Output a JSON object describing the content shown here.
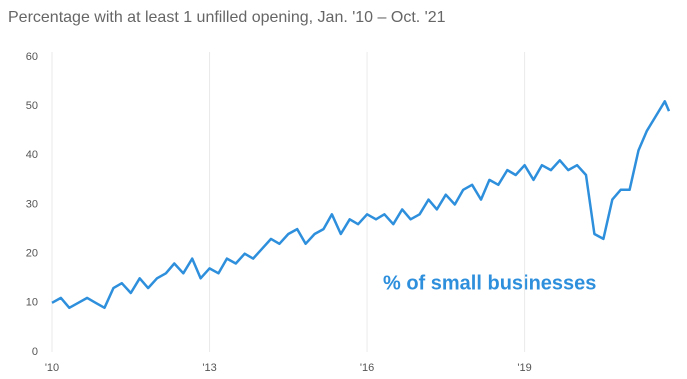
{
  "chart_data": {
    "type": "line",
    "title": "Percentage with at least 1 unfilled opening, Jan. '10 – Oct. '21",
    "x": [
      2010,
      2010.17,
      2010.33,
      2010.5,
      2010.67,
      2010.83,
      2011,
      2011.17,
      2011.33,
      2011.5,
      2011.67,
      2011.83,
      2012,
      2012.17,
      2012.33,
      2012.5,
      2012.67,
      2012.83,
      2013,
      2013.17,
      2013.33,
      2013.5,
      2013.67,
      2013.83,
      2014,
      2014.17,
      2014.33,
      2014.5,
      2014.67,
      2014.83,
      2015,
      2015.17,
      2015.33,
      2015.5,
      2015.67,
      2015.83,
      2016,
      2016.17,
      2016.33,
      2016.5,
      2016.67,
      2016.83,
      2017,
      2017.17,
      2017.33,
      2017.5,
      2017.67,
      2017.83,
      2018,
      2018.17,
      2018.33,
      2018.5,
      2018.67,
      2018.83,
      2019,
      2019.17,
      2019.33,
      2019.5,
      2019.67,
      2019.83,
      2020,
      2020.17,
      2020.33,
      2020.5,
      2020.67,
      2020.83,
      2021,
      2021.17,
      2021.33,
      2021.5,
      2021.67,
      2021.75
    ],
    "series": [
      {
        "name": "% of small businesses",
        "color": "#2e8fdc",
        "values": [
          10,
          11,
          9,
          10,
          11,
          10,
          9,
          13,
          14,
          12,
          15,
          13,
          15,
          16,
          18,
          16,
          19,
          15,
          17,
          16,
          19,
          18,
          20,
          19,
          21,
          23,
          22,
          24,
          25,
          22,
          24,
          25,
          28,
          24,
          27,
          26,
          28,
          27,
          28,
          26,
          29,
          27,
          28,
          31,
          29,
          32,
          30,
          33,
          34,
          31,
          35,
          34,
          37,
          36,
          38,
          35,
          38,
          37,
          39,
          37,
          38,
          36,
          24,
          23,
          31,
          33,
          33,
          41,
          45,
          48,
          51,
          49
        ]
      }
    ],
    "xlim": [
      2010,
      2021.75
    ],
    "xticks": [
      {
        "value": 2010,
        "label": "'10"
      },
      {
        "value": 2013,
        "label": "'13"
      },
      {
        "value": 2016,
        "label": "'16"
      },
      {
        "value": 2019,
        "label": "'19"
      }
    ],
    "ylim": [
      0,
      60
    ],
    "yticks": [
      0,
      10,
      20,
      30,
      40,
      50,
      60
    ],
    "grid": true
  }
}
